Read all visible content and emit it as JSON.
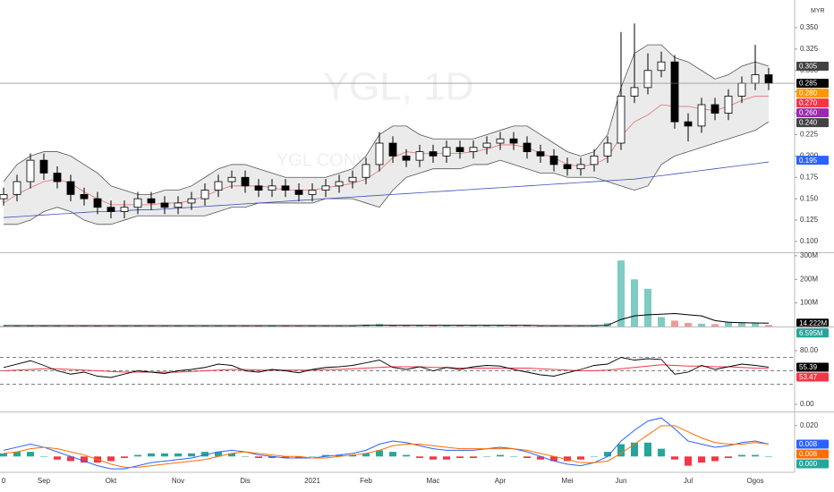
{
  "chart_data": [
    {
      "type": "candlestick",
      "title": "YGL, 1D",
      "subtitle": "YGL CONVERT",
      "unit": "MYR",
      "categories": [
        "0",
        null,
        null,
        "Sep",
        null,
        null,
        null,
        null,
        "Okt",
        null,
        null,
        null,
        null,
        "Nov",
        null,
        null,
        null,
        null,
        "Dis",
        null,
        null,
        null,
        null,
        "2021",
        null,
        null,
        null,
        "Feb",
        null,
        null,
        null,
        null,
        "Mac",
        null,
        null,
        null,
        null,
        "Apr",
        null,
        null,
        null,
        null,
        "Mei",
        null,
        null,
        null,
        "Jun",
        null,
        null,
        null,
        null,
        "Jul",
        null,
        null,
        null,
        null,
        "Ogos",
        null
      ],
      "open": [
        0.15,
        0.155,
        0.17,
        0.195,
        0.18,
        0.17,
        0.155,
        0.15,
        0.14,
        0.135,
        0.14,
        0.15,
        0.145,
        0.14,
        0.145,
        0.15,
        0.16,
        0.17,
        0.175,
        0.165,
        0.16,
        0.165,
        0.16,
        0.155,
        0.16,
        0.165,
        0.17,
        0.175,
        0.19,
        0.215,
        0.2,
        0.195,
        0.205,
        0.2,
        0.21,
        0.205,
        0.21,
        0.215,
        0.22,
        0.215,
        0.205,
        0.2,
        0.19,
        0.185,
        0.19,
        0.2,
        0.215,
        0.27,
        0.28,
        0.3,
        0.31,
        0.24,
        0.235,
        0.26,
        0.25,
        0.27,
        0.285,
        0.295
      ],
      "high": [
        0.163,
        0.178,
        0.203,
        0.203,
        0.188,
        0.178,
        0.163,
        0.158,
        0.148,
        0.148,
        0.158,
        0.158,
        0.153,
        0.153,
        0.158,
        0.168,
        0.178,
        0.183,
        0.183,
        0.173,
        0.173,
        0.173,
        0.168,
        0.168,
        0.173,
        0.178,
        0.183,
        0.198,
        0.228,
        0.223,
        0.208,
        0.213,
        0.213,
        0.218,
        0.218,
        0.218,
        0.223,
        0.228,
        0.228,
        0.223,
        0.213,
        0.208,
        0.198,
        0.198,
        0.208,
        0.223,
        0.345,
        0.355,
        0.32,
        0.322,
        0.318,
        0.25,
        0.268,
        0.268,
        0.278,
        0.293,
        0.33,
        0.303
      ],
      "low": [
        0.142,
        0.147,
        0.162,
        0.172,
        0.162,
        0.147,
        0.142,
        0.132,
        0.127,
        0.127,
        0.132,
        0.137,
        0.132,
        0.132,
        0.137,
        0.142,
        0.152,
        0.162,
        0.157,
        0.152,
        0.152,
        0.152,
        0.147,
        0.147,
        0.152,
        0.157,
        0.162,
        0.167,
        0.182,
        0.192,
        0.187,
        0.187,
        0.192,
        0.192,
        0.197,
        0.197,
        0.202,
        0.207,
        0.207,
        0.197,
        0.192,
        0.182,
        0.177,
        0.177,
        0.182,
        0.192,
        0.207,
        0.262,
        0.272,
        0.292,
        0.232,
        0.217,
        0.227,
        0.242,
        0.242,
        0.262,
        0.277,
        0.277
      ],
      "close": [
        0.155,
        0.17,
        0.195,
        0.18,
        0.17,
        0.155,
        0.15,
        0.14,
        0.135,
        0.14,
        0.15,
        0.145,
        0.14,
        0.145,
        0.15,
        0.16,
        0.17,
        0.175,
        0.165,
        0.16,
        0.165,
        0.16,
        0.155,
        0.16,
        0.165,
        0.17,
        0.175,
        0.19,
        0.215,
        0.2,
        0.195,
        0.205,
        0.2,
        0.21,
        0.205,
        0.21,
        0.215,
        0.22,
        0.215,
        0.205,
        0.2,
        0.19,
        0.185,
        0.19,
        0.2,
        0.215,
        0.27,
        0.28,
        0.3,
        0.31,
        0.24,
        0.235,
        0.26,
        0.25,
        0.27,
        0.285,
        0.295,
        0.285
      ],
      "up_color": "#ffffff",
      "down_color": "#000000",
      "band_color": "#e3e3e3",
      "series": [
        {
          "color": "#555555",
          "values": [
            0.17,
            0.19,
            0.2,
            0.205,
            0.205,
            0.2,
            0.19,
            0.18,
            0.165,
            0.16,
            0.155,
            0.155,
            0.16,
            0.16,
            0.165,
            0.175,
            0.185,
            0.19,
            0.19,
            0.185,
            0.18,
            0.175,
            0.175,
            0.175,
            0.175,
            0.18,
            0.185,
            0.2,
            0.225,
            0.235,
            0.235,
            0.225,
            0.22,
            0.22,
            0.22,
            0.22,
            0.225,
            0.23,
            0.235,
            0.235,
            0.225,
            0.215,
            0.205,
            0.2,
            0.205,
            0.225,
            0.28,
            0.32,
            0.33,
            0.33,
            0.315,
            0.31,
            0.3,
            0.29,
            0.295,
            0.305,
            0.31,
            0.305
          ]
        },
        {
          "color": "#555555",
          "values": [
            0.12,
            0.12,
            0.125,
            0.135,
            0.14,
            0.135,
            0.125,
            0.12,
            0.12,
            0.125,
            0.13,
            0.13,
            0.13,
            0.13,
            0.13,
            0.13,
            0.135,
            0.14,
            0.14,
            0.145,
            0.145,
            0.145,
            0.145,
            0.145,
            0.15,
            0.15,
            0.15,
            0.145,
            0.14,
            0.16,
            0.175,
            0.18,
            0.185,
            0.185,
            0.185,
            0.19,
            0.19,
            0.195,
            0.19,
            0.185,
            0.18,
            0.18,
            0.175,
            0.175,
            0.175,
            0.17,
            0.165,
            0.16,
            0.165,
            0.19,
            0.2,
            0.205,
            0.21,
            0.215,
            0.22,
            0.225,
            0.23,
            0.24
          ]
        },
        {
          "color": "#e57373",
          "values": [
            0.145,
            0.155,
            0.163,
            0.17,
            0.173,
            0.168,
            0.158,
            0.15,
            0.143,
            0.143,
            0.143,
            0.143,
            0.145,
            0.145,
            0.148,
            0.153,
            0.16,
            0.165,
            0.165,
            0.165,
            0.163,
            0.16,
            0.16,
            0.16,
            0.163,
            0.165,
            0.168,
            0.173,
            0.183,
            0.198,
            0.205,
            0.203,
            0.203,
            0.203,
            0.203,
            0.205,
            0.208,
            0.213,
            0.213,
            0.21,
            0.203,
            0.198,
            0.19,
            0.188,
            0.19,
            0.198,
            0.223,
            0.24,
            0.248,
            0.26,
            0.258,
            0.258,
            0.255,
            0.253,
            0.258,
            0.265,
            0.27,
            0.27
          ]
        },
        {
          "color": "#3f51b5",
          "values": [
            0.128,
            0.129,
            0.13,
            0.131,
            0.132,
            0.133,
            0.134,
            0.135,
            0.135,
            0.136,
            0.137,
            0.137,
            0.138,
            0.139,
            0.14,
            0.141,
            0.142,
            0.143,
            0.144,
            0.145,
            0.146,
            0.147,
            0.148,
            0.149,
            0.15,
            0.151,
            0.152,
            0.153,
            0.154,
            0.155,
            0.156,
            0.157,
            0.158,
            0.159,
            0.16,
            0.161,
            0.162,
            0.163,
            0.164,
            0.165,
            0.166,
            0.167,
            0.168,
            0.169,
            0.17,
            0.171,
            0.172,
            0.173,
            0.175,
            0.177,
            0.179,
            0.181,
            0.183,
            0.185,
            0.187,
            0.189,
            0.191,
            0.193
          ]
        }
      ],
      "ylim": [
        0.0874,
        0.3824
      ],
      "yticks": [
        {
          "value": 0.1,
          "label": "0.100"
        },
        {
          "value": 0.125,
          "label": "0.125"
        },
        {
          "value": 0.15,
          "label": "0.150"
        },
        {
          "value": 0.175,
          "label": "0.175"
        },
        {
          "value": 0.2,
          "label": "0.200"
        },
        {
          "value": 0.225,
          "label": "0.225"
        },
        {
          "value": 0.25,
          "label": "0.250"
        },
        {
          "value": 0.275,
          "label": "0.275"
        },
        {
          "value": 0.3,
          "label": "0.300"
        },
        {
          "value": 0.325,
          "label": "0.325"
        },
        {
          "value": 0.35,
          "label": "0.350"
        }
      ],
      "tags": [
        {
          "value": 0.305,
          "label": "0.305",
          "color": "#424242"
        },
        {
          "value": 0.285,
          "label": "0.285",
          "color": "#000000"
        },
        {
          "value": 0.28,
          "label": "0.280",
          "color": "#ff9800"
        },
        {
          "value": 0.27,
          "label": "0.270",
          "color": "#f23645"
        },
        {
          "value": 0.26,
          "label": "0.260",
          "color": "#9c27b0"
        },
        {
          "value": 0.24,
          "label": "0.240",
          "color": "#424242"
        },
        {
          "value": 0.195,
          "label": "0.195",
          "color": "#2962ff"
        }
      ]
    },
    {
      "type": "volume",
      "values": [
        3000000,
        4000000,
        6000000,
        5000000,
        3000000,
        3000000,
        2000000,
        3000000,
        4000000,
        3000000,
        2000000,
        2000000,
        2000000,
        3000000,
        3000000,
        4000000,
        5000000,
        4000000,
        3000000,
        2000000,
        2000000,
        2000000,
        2000000,
        3000000,
        3000000,
        4000000,
        5000000,
        8000000,
        12000000,
        6000000,
        4000000,
        5000000,
        4000000,
        5000000,
        4000000,
        4000000,
        5000000,
        6000000,
        5000000,
        4000000,
        3000000,
        3000000,
        3000000,
        4000000,
        6000000,
        15000000,
        280000000,
        200000000,
        160000000,
        40000000,
        25000000,
        15000000,
        12000000,
        10000000,
        20000000,
        18000000,
        15000000,
        6595000
      ],
      "series": [
        {
          "color": "#000000",
          "values": [
            4000000,
            4000000,
            4000000,
            4000000,
            4000000,
            4000000,
            4000000,
            4000000,
            4000000,
            4000000,
            4000000,
            4000000,
            4000000,
            4000000,
            4000000,
            4000000,
            4000000,
            4000000,
            4000000,
            4000000,
            4000000,
            4000000,
            4000000,
            4000000,
            4000000,
            4000000,
            4000000,
            5000000,
            5000000,
            5000000,
            5000000,
            5000000,
            5000000,
            5000000,
            5000000,
            5000000,
            5000000,
            5000000,
            5000000,
            5000000,
            4000000,
            4000000,
            4000000,
            4000000,
            4000000,
            5000000,
            30000000,
            45000000,
            50000000,
            52000000,
            55000000,
            50000000,
            45000000,
            25000000,
            18000000,
            16000000,
            15000000,
            14222000
          ]
        }
      ],
      "up_color": "#80cbc4",
      "down_color": "#ef9a9a",
      "ylim": [
        0,
        311000000
      ],
      "yticks": [
        {
          "value": 100000000,
          "label": "100M"
        },
        {
          "value": 200000000,
          "label": "200M"
        },
        {
          "value": 300000000,
          "label": "300M"
        }
      ],
      "tags": [
        {
          "value": 14222000,
          "label": "14.222M",
          "color": "#000000"
        },
        {
          "value": 6595000,
          "label": "6.595M",
          "color": "#26a69a"
        }
      ]
    },
    {
      "type": "line",
      "values": [
        55,
        60,
        65,
        58,
        50,
        45,
        48,
        42,
        40,
        45,
        50,
        48,
        46,
        50,
        52,
        55,
        60,
        58,
        50,
        48,
        52,
        50,
        47,
        52,
        55,
        56,
        58,
        62,
        66,
        55,
        52,
        56,
        50,
        55,
        52,
        56,
        58,
        57,
        52,
        48,
        44,
        42,
        47,
        52,
        58,
        60,
        70,
        66,
        68,
        67,
        45,
        48,
        58,
        52,
        56,
        60,
        58,
        55.39
      ],
      "color": "#000000",
      "series": [
        {
          "color": "#f23645",
          "values": [
            50,
            51,
            52,
            53,
            53,
            52,
            51,
            50,
            49,
            48,
            48,
            48,
            48,
            48,
            49,
            50,
            51,
            52,
            52,
            51,
            51,
            51,
            51,
            51,
            52,
            52,
            53,
            54,
            55,
            56,
            56,
            56,
            55,
            55,
            54,
            54,
            54,
            54,
            54,
            54,
            53,
            52,
            51,
            50,
            50,
            51,
            53,
            55,
            57,
            59,
            58,
            57,
            57,
            56,
            56,
            55,
            54,
            53.47
          ]
        }
      ],
      "levels": [
        70,
        50,
        30
      ],
      "ylim": [
        -10.7,
        114.7
      ],
      "yticks": [
        {
          "value": 0,
          "label": "0.00"
        },
        {
          "value": 80,
          "label": "80.00"
        }
      ],
      "tags": [
        {
          "value": 55.39,
          "label": "55.39",
          "color": "#000000"
        },
        {
          "value": 53.47,
          "label": "53.47",
          "color": "#f23645"
        }
      ]
    },
    {
      "type": "macd",
      "macd": [
        0.004,
        0.006,
        0.008,
        0.006,
        0.003,
        0.0,
        -0.003,
        -0.006,
        -0.008,
        -0.008,
        -0.006,
        -0.004,
        -0.003,
        -0.002,
        -0.001,
        0.001,
        0.003,
        0.004,
        0.003,
        0.001,
        0.0,
        -0.001,
        -0.001,
        -0.001,
        0.0,
        0.001,
        0.002,
        0.004,
        0.008,
        0.01,
        0.009,
        0.007,
        0.005,
        0.004,
        0.004,
        0.004,
        0.005,
        0.006,
        0.005,
        0.003,
        0.0,
        -0.003,
        -0.005,
        -0.006,
        -0.004,
        0.0,
        0.01,
        0.017,
        0.023,
        0.025,
        0.018,
        0.01,
        0.008,
        0.006,
        0.007,
        0.009,
        0.01,
        0.008
      ],
      "signal": [
        0.002,
        0.003,
        0.005,
        0.006,
        0.005,
        0.003,
        0.001,
        -0.002,
        -0.005,
        -0.007,
        -0.007,
        -0.006,
        -0.005,
        -0.004,
        -0.003,
        -0.002,
        0.0,
        0.002,
        0.003,
        0.002,
        0.001,
        0.0,
        0.0,
        -0.001,
        -0.001,
        0.0,
        0.001,
        0.002,
        0.004,
        0.007,
        0.008,
        0.008,
        0.007,
        0.006,
        0.005,
        0.005,
        0.005,
        0.005,
        0.005,
        0.004,
        0.002,
        0.0,
        -0.002,
        -0.004,
        -0.004,
        -0.003,
        0.002,
        0.008,
        0.014,
        0.02,
        0.02,
        0.016,
        0.012,
        0.009,
        0.008,
        0.008,
        0.009,
        0.008
      ],
      "histogram": [
        0.002,
        0.003,
        0.003,
        0.0,
        -0.002,
        -0.003,
        -0.004,
        -0.004,
        -0.003,
        -0.001,
        0.001,
        0.002,
        0.002,
        0.002,
        0.002,
        0.003,
        0.003,
        0.002,
        0.0,
        -0.001,
        -0.001,
        -0.001,
        -0.001,
        0.0,
        0.001,
        0.001,
        0.001,
        0.002,
        0.004,
        0.003,
        0.001,
        -0.001,
        -0.002,
        -0.002,
        -0.001,
        -0.001,
        0.0,
        0.001,
        0.0,
        -0.001,
        -0.002,
        -0.003,
        -0.003,
        -0.002,
        0.0,
        0.003,
        0.008,
        0.009,
        0.009,
        0.005,
        -0.002,
        -0.006,
        -0.004,
        -0.003,
        -0.001,
        0.001,
        0.001,
        0.0
      ],
      "macd_color": "#2962ff",
      "signal_color": "#ff6d00",
      "up_color": "#26a69a",
      "down_color": "#f23645",
      "ylim": [
        -0.0097,
        0.0286
      ],
      "yticks": [
        {
          "value": 0.02,
          "label": "0.020"
        }
      ],
      "tags": [
        {
          "value": 0.008,
          "label": "0.008",
          "color": "#2962ff"
        },
        {
          "value": 0.008,
          "label": "0.008",
          "color": "#ff6d00"
        },
        {
          "value": 0,
          "label": "0.000",
          "color": "#26a69a"
        }
      ]
    }
  ]
}
